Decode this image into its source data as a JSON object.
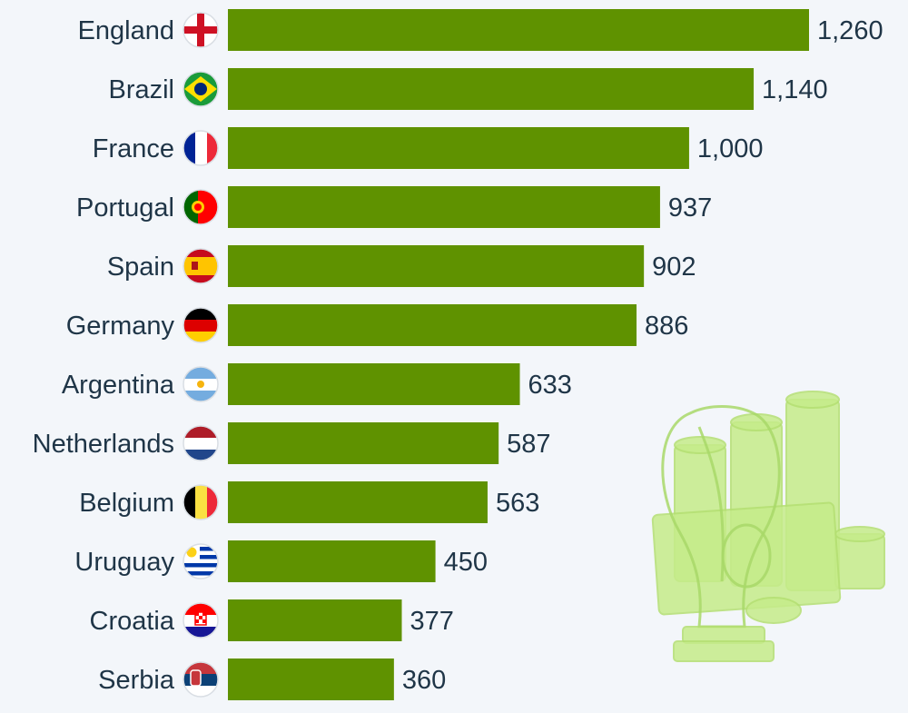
{
  "chart_data": {
    "type": "bar",
    "orientation": "horizontal",
    "categories": [
      "England",
      "Brazil",
      "France",
      "Portugal",
      "Spain",
      "Germany",
      "Argentina",
      "Netherlands",
      "Belgium",
      "Uruguay",
      "Croatia",
      "Serbia"
    ],
    "values": [
      1260,
      1140,
      1000,
      937,
      902,
      886,
      633,
      587,
      563,
      450,
      377,
      360
    ],
    "value_labels": [
      "1,260",
      "1,140",
      "1,000",
      "937",
      "902",
      "886",
      "633",
      "587",
      "563",
      "450",
      "377",
      "360"
    ],
    "flags": [
      "england-flag-icon",
      "brazil-flag-icon",
      "france-flag-icon",
      "portugal-flag-icon",
      "spain-flag-icon",
      "germany-flag-icon",
      "argentina-flag-icon",
      "netherlands-flag-icon",
      "belgium-flag-icon",
      "uruguay-flag-icon",
      "croatia-flag-icon",
      "serbia-flag-icon"
    ],
    "xlim": [
      0,
      1260
    ],
    "grid": false,
    "legend": "none",
    "bar_color": "#5f9200"
  },
  "colors": {
    "background": "#f3f6fa",
    "text": "#1f3547",
    "decoration": "#c6ec8a"
  },
  "decoration": {
    "icon": "trophy-and-money-icon"
  }
}
